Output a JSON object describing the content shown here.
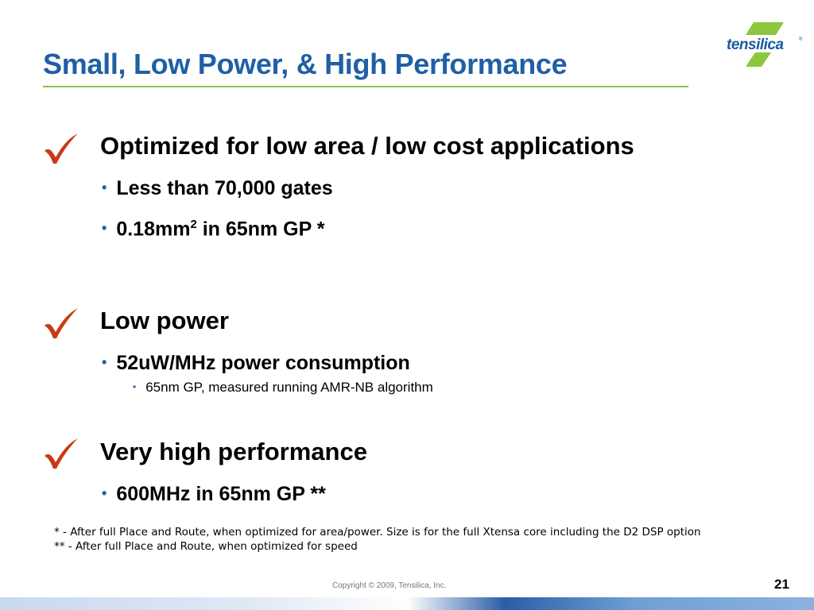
{
  "slide": {
    "title": "Small, Low Power, & High Performance",
    "logo_text": "tensilica",
    "logo_reg": "®",
    "sections": [
      {
        "heading": "Optimized for low area / low cost applications",
        "bullets": [
          {
            "text": "Less than 70,000 gates"
          },
          {
            "pre": "0.18mm",
            "sup": "2",
            "post": " in 65nm GP *"
          }
        ]
      },
      {
        "heading": "Low power",
        "bullets": [
          {
            "text": "52uW/MHz power consumption"
          }
        ],
        "sub_bullets": [
          "65nm GP, measured running AMR-NB algorithm"
        ]
      },
      {
        "heading": "Very high performance",
        "bullets": [
          {
            "text": "600MHz in 65nm GP **"
          }
        ]
      }
    ],
    "footnotes": [
      "*   - After full Place and Route, when optimized for area/power. Size is for the full Xtensa core including the D2 DSP option",
      "** - After full Place and Route, when optimized for speed"
    ],
    "copyright": "Copyright © 2009, Tensilica, Inc.",
    "page_number": "21",
    "colors": {
      "title": "#1f5fa6",
      "rule": "#8bc34a",
      "check": "#c83a14",
      "logo": "#1c5aa0",
      "logo_mark": "#8dc63f"
    },
    "icons": [
      "checkmark-icon",
      "tensilica-logo"
    ]
  }
}
